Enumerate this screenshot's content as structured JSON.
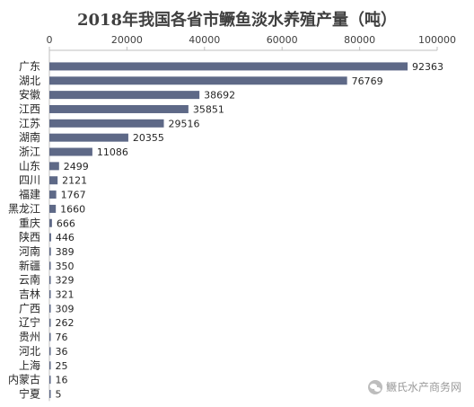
{
  "chart_data": {
    "type": "bar",
    "orientation": "horizontal",
    "title": "2018年我国各省市鳜鱼淡水养殖产量（吨）",
    "categories": [
      "广东",
      "湖北",
      "安徽",
      "江西",
      "江苏",
      "湖南",
      "浙江",
      "山东",
      "四川",
      "福建",
      "黑龙江",
      "重庆",
      "陕西",
      "河南",
      "新疆",
      "云南",
      "吉林",
      "广西",
      "辽宁",
      "贵州",
      "河北",
      "上海",
      "内蒙古",
      "宁夏"
    ],
    "values": [
      92363,
      76769,
      38692,
      35851,
      29516,
      20355,
      11086,
      2499,
      2121,
      1767,
      1660,
      666,
      446,
      389,
      350,
      329,
      321,
      309,
      262,
      76,
      36,
      25,
      16,
      5
    ],
    "x_ticks": [
      0,
      20000,
      40000,
      60000,
      80000,
      100000
    ],
    "xlim": [
      0,
      100000
    ],
    "axis_position": "top",
    "bar_color": "#5e6987",
    "grid": false
  },
  "watermark": {
    "text": "鳜氏水产商务网",
    "icon": "wechat-icon"
  }
}
